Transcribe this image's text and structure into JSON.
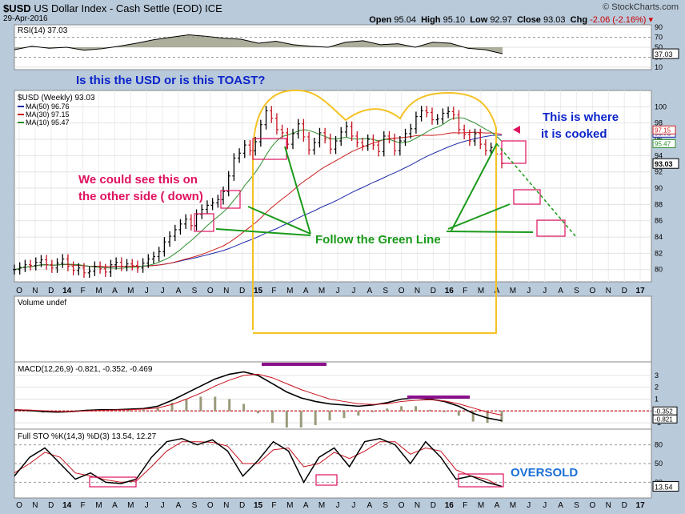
{
  "header": {
    "symbol": "$USD",
    "name": "US Dollar Index - Cash Settle (EOD)",
    "exchange": "ICE",
    "date": "29-Apr-2016",
    "brand": "© StockCharts.com",
    "open_label": "Open",
    "open": "95.04",
    "high_label": "High",
    "high": "95.10",
    "low_label": "Low",
    "low": "92.97",
    "close_label": "Close",
    "close": "93.03",
    "chg_label": "Chg",
    "chg": "-2.06 (-2.16%)"
  },
  "colors": {
    "background": "#b9cadb",
    "panel": "#ffffff",
    "annotation_blue": "#0b24c9",
    "annotation_red": "#e0115f",
    "annotation_green": "#1a9a1a",
    "outline_yellow": "#f5c223",
    "ma50": "#1f2aa8",
    "ma30": "#cc1f1f",
    "ma10": "#2c8f2c",
    "macd_bar": "#8a0f8a"
  },
  "annotations": {
    "toast": "Is this the USD or is this TOAST?",
    "cooked_1": "This is where",
    "cooked_2": "it is cooked",
    "other_side_1": "We could see this on",
    "other_side_2": "the other side ( down)",
    "green_line": "Follow the Green Line",
    "oversold": "OVERSOLD"
  },
  "chart_data": [
    {
      "type": "line",
      "panel": "rsi",
      "title": "RSI(14) 37.03",
      "series": [
        {
          "name": "RSI(14)",
          "values": [
            45,
            52,
            48,
            50,
            44,
            47,
            52,
            58,
            65,
            70,
            75,
            72,
            68,
            66,
            58,
            62,
            55,
            52,
            50,
            60,
            63,
            55,
            57,
            50,
            60,
            58,
            48,
            45,
            37
          ]
        }
      ],
      "y_ticks": [
        "90",
        "70",
        "50",
        "30",
        "10"
      ],
      "last_value": "37.03"
    },
    {
      "type": "line",
      "panel": "price",
      "title": "$USD (Weekly) 93.03",
      "legend": [
        "MA(50) 96.76",
        "MA(30) 97.15",
        "MA(10) 95.47"
      ],
      "legend_placement": "top-left",
      "x_tick_labels": [
        "O",
        "N",
        "D",
        "14",
        "F",
        "M",
        "A",
        "M",
        "J",
        "J",
        "A",
        "S",
        "O",
        "N",
        "D",
        "15",
        "F",
        "M",
        "A",
        "M",
        "J",
        "J",
        "A",
        "S",
        "O",
        "N",
        "D",
        "16",
        "F",
        "M",
        "A",
        "M",
        "J",
        "J",
        "A",
        "S",
        "O",
        "N",
        "D",
        "17"
      ],
      "y_ticks": [
        "100",
        "98",
        "96",
        "94",
        "92",
        "90",
        "88",
        "86",
        "84",
        "82",
        "80"
      ],
      "ylim": [
        78.5,
        102
      ],
      "price_weekly": [
        80.0,
        80.3,
        80.6,
        80.5,
        80.9,
        81.2,
        80.6,
        80.2,
        80.8,
        81.3,
        80.4,
        79.9,
        80.2,
        79.6,
        79.8,
        80.4,
        80.1,
        79.7,
        80.6,
        80.9,
        80.4,
        80.7,
        80.5,
        80.2,
        80.8,
        81.3,
        81.6,
        82.2,
        83.4,
        84.1,
        84.9,
        85.6,
        86.2,
        85.4,
        86.8,
        87.4,
        87.9,
        88.2,
        88.6,
        89.6,
        91.5,
        93.7,
        94.3,
        95.3,
        94.6,
        95.7,
        97.8,
        99.5,
        98.6,
        97.2,
        96.8,
        95.4,
        96.7,
        97.9,
        96.3,
        94.7,
        95.6,
        96.8,
        96.1,
        94.8,
        95.8,
        96.9,
        97.6,
        96.4,
        95.6,
        95.2,
        96.0,
        95.3,
        94.5,
        96.4,
        96.1,
        94.6,
        95.8,
        96.7,
        97.3,
        98.8,
        99.5,
        99.3,
        98.4,
        98.5,
        99.2,
        99.4,
        99.0,
        97.2,
        96.6,
        95.8,
        96.7,
        95.4,
        94.6,
        95.0,
        94.2,
        93.03
      ],
      "ma50_last": 96.76,
      "ma30_last": 97.15,
      "ma10_last": 95.47,
      "last_value": "93.03"
    },
    {
      "type": "bar",
      "panel": "volume",
      "title": "Volume undef"
    },
    {
      "type": "line",
      "panel": "macd",
      "title": "MACD(12,26,9) -0.821, -0.352, -0.469",
      "y_ticks": [
        "3",
        "2",
        "1",
        "0",
        "-1"
      ],
      "series": [
        {
          "name": "MACD",
          "values": [
            0.1,
            0.05,
            -0.05,
            -0.1,
            -0.05,
            0.05,
            0.1,
            0.1,
            0.15,
            0.2,
            0.4,
            0.9,
            1.5,
            2.1,
            2.7,
            3.1,
            3.3,
            3.0,
            2.3,
            1.6,
            1.1,
            0.8,
            0.6,
            0.5,
            0.4,
            0.5,
            0.7,
            1.0,
            1.1,
            1.0,
            0.8,
            0.4,
            -0.2,
            -0.6,
            -0.821
          ]
        },
        {
          "name": "Signal",
          "values": [
            0.1,
            0.08,
            0.02,
            -0.04,
            -0.05,
            0.0,
            0.05,
            0.08,
            0.1,
            0.15,
            0.25,
            0.55,
            1.0,
            1.5,
            2.1,
            2.6,
            3.0,
            3.1,
            2.8,
            2.3,
            1.8,
            1.4,
            1.0,
            0.8,
            0.6,
            0.55,
            0.6,
            0.8,
            0.9,
            0.95,
            0.85,
            0.6,
            0.25,
            -0.1,
            -0.352
          ]
        }
      ],
      "last_values": [
        "-0.352",
        "-0.821"
      ]
    },
    {
      "type": "line",
      "panel": "stochastic",
      "title": "Full STO %K(14,3) %D(3) 13.54, 12.27",
      "y_ticks": [
        "80",
        "50",
        "20"
      ],
      "series": [
        {
          "name": "%K",
          "values": [
            30,
            60,
            75,
            50,
            25,
            35,
            20,
            18,
            25,
            60,
            85,
            90,
            80,
            88,
            70,
            30,
            55,
            85,
            70,
            20,
            60,
            75,
            45,
            85,
            90,
            80,
            50,
            85,
            60,
            25,
            30,
            20,
            13.54
          ]
        },
        {
          "name": "%D",
          "values": [
            35,
            50,
            68,
            60,
            35,
            30,
            24,
            20,
            22,
            45,
            70,
            85,
            85,
            84,
            78,
            50,
            50,
            72,
            75,
            45,
            50,
            68,
            58,
            70,
            85,
            85,
            65,
            75,
            70,
            40,
            30,
            25,
            12.27
          ]
        }
      ],
      "last_value": "13.54"
    }
  ]
}
